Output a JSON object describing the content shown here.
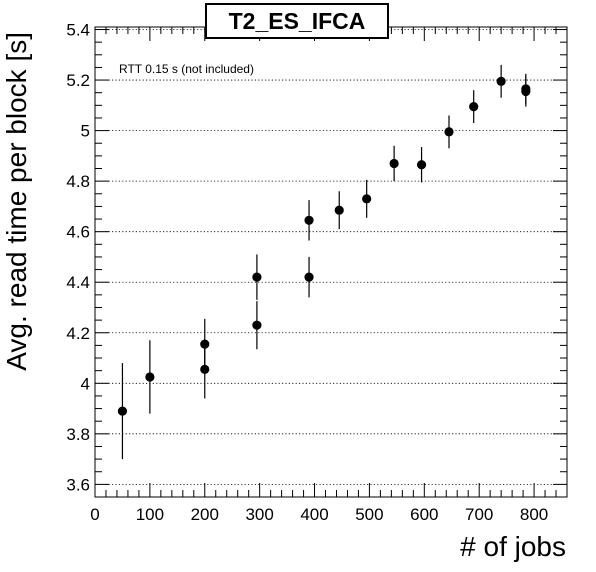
{
  "chart_data": {
    "type": "scatter",
    "title": "T2_ES_IFCA",
    "xlabel": "# of jobs",
    "ylabel": "Avg. read time per block [s]",
    "annotation": "RTT 0.15 s (not included)",
    "xlim": [
      0,
      860
    ],
    "ylim": [
      3.55,
      5.41
    ],
    "xticks": [
      0,
      100,
      200,
      300,
      400,
      500,
      600,
      700,
      800
    ],
    "yticks": [
      3.6,
      3.8,
      4,
      4.2,
      4.4,
      4.6,
      4.8,
      5,
      5.2,
      5.4
    ],
    "xtick_labels": [
      "0",
      "100",
      "200",
      "300",
      "400",
      "500",
      "600",
      "700",
      "800"
    ],
    "ytick_labels": [
      "3.6",
      "3.8",
      "4",
      "4.2",
      "4.4",
      "4.6",
      "4.8",
      "5",
      "5.2",
      "5.4"
    ],
    "grid": "horizontal-dotted",
    "marker_color": "#000000",
    "series": [
      {
        "points": [
          {
            "x": 50,
            "y": 3.89,
            "yerr": 0.19
          },
          {
            "x": 100,
            "y": 4.025,
            "yerr": 0.145
          },
          {
            "x": 200,
            "y": 4.155,
            "yerr": 0.1
          },
          {
            "x": 200,
            "y": 4.055,
            "yerr": 0.115
          },
          {
            "x": 295,
            "y": 4.42,
            "yerr": 0.09
          },
          {
            "x": 295,
            "y": 4.23,
            "yerr": 0.095
          },
          {
            "x": 390,
            "y": 4.645,
            "yerr": 0.08
          },
          {
            "x": 390,
            "y": 4.42,
            "yerr": 0.08
          },
          {
            "x": 445,
            "y": 4.685,
            "yerr": 0.075
          },
          {
            "x": 495,
            "y": 4.73,
            "yerr": 0.075
          },
          {
            "x": 545,
            "y": 4.87,
            "yerr": 0.07
          },
          {
            "x": 595,
            "y": 4.865,
            "yerr": 0.07
          },
          {
            "x": 645,
            "y": 4.995,
            "yerr": 0.065
          },
          {
            "x": 690,
            "y": 5.095,
            "yerr": 0.065
          },
          {
            "x": 740,
            "y": 5.195,
            "yerr": 0.065
          },
          {
            "x": 785,
            "y": 5.165,
            "yerr": 0.06
          },
          {
            "x": 785,
            "y": 5.155,
            "yerr": 0.06
          }
        ]
      }
    ]
  }
}
